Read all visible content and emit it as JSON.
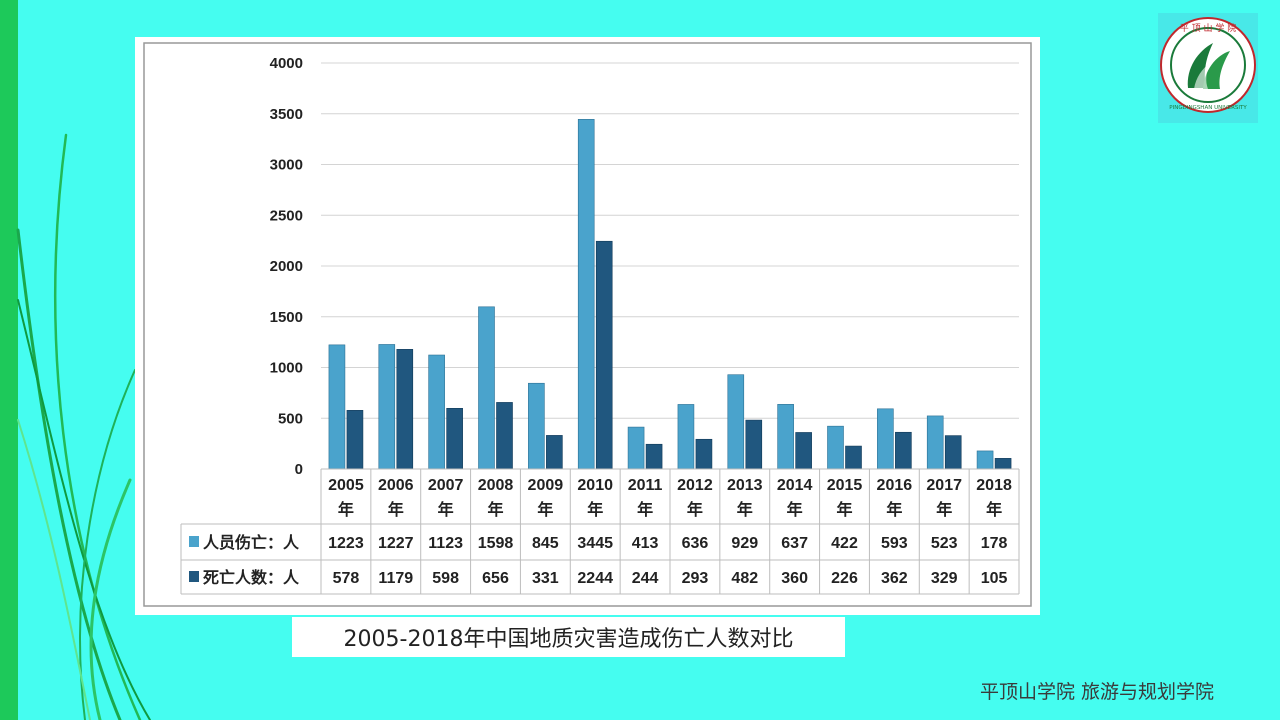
{
  "caption": "2005-2018年中国地质灾害造成伤亡人数对比",
  "footer": "平顶山学院  旅游与规划学院",
  "logo": {
    "text_top": "平顶山学院",
    "text_bottom": "PINGDINGSHAN UNIVERSITY",
    "colors": {
      "ring": "#1a7a3a",
      "outer": "#c0282d",
      "bg": "#48e8e8"
    }
  },
  "colors": {
    "background": "#45fdf0",
    "left_bar": "#1dc95a",
    "series1": "#4aa3cc",
    "series2": "#20577f"
  },
  "chart_data": {
    "type": "bar",
    "categories": [
      "2005年",
      "2006年",
      "2007年",
      "2008年",
      "2009年",
      "2010年",
      "2011年",
      "2012年",
      "2013年",
      "2014年",
      "2015年",
      "2016年",
      "2017年",
      "2018年"
    ],
    "series": [
      {
        "name": "人员伤亡：人",
        "values": [
          1223,
          1227,
          1123,
          1598,
          845,
          3445,
          413,
          636,
          929,
          637,
          422,
          593,
          523,
          178
        ]
      },
      {
        "name": "死亡人数：人",
        "values": [
          578,
          1179,
          598,
          656,
          331,
          2244,
          244,
          293,
          482,
          360,
          226,
          362,
          329,
          105
        ]
      }
    ],
    "ylim": [
      0,
      4000
    ],
    "yticks": [
      0,
      500,
      1000,
      1500,
      2000,
      2500,
      3000,
      3500,
      4000
    ],
    "grid": true,
    "legend": "data-table"
  }
}
